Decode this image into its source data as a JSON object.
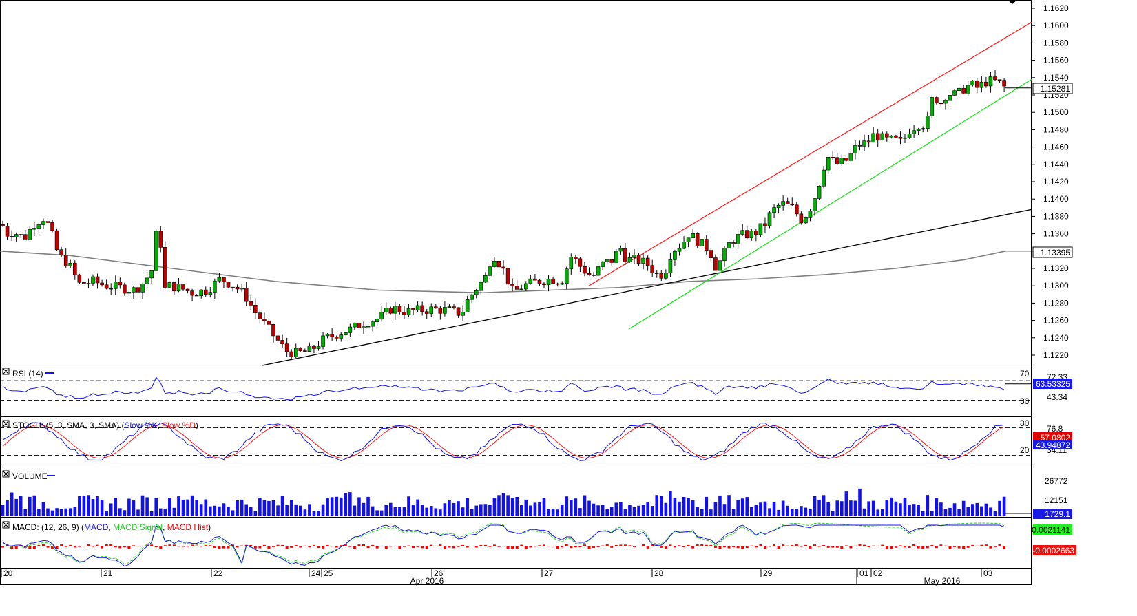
{
  "colors": {
    "bull": "#00b000",
    "bear": "#c00000",
    "channel_upper": "#ff2020",
    "channel_lower": "#20e020",
    "trendline": "#000000",
    "ma": "#808080",
    "rsi": "#1515e0",
    "stoch_k": "#1515e0",
    "stoch_d": "#ff1a1a",
    "volume": "#1010f0",
    "macd": "#1515e0",
    "macd_signal": "#20d020",
    "macd_hist": "#ff0000"
  },
  "price_axis": {
    "ticks": [
      "1.1620",
      "1.1600",
      "1.1580",
      "1.1560",
      "1.1540",
      "1.1520",
      "1.1500",
      "1.1480",
      "1.1460",
      "1.1440",
      "1.1420",
      "1.1400",
      "1.1380",
      "1.1360",
      "1.1340",
      "1.1320",
      "1.1300",
      "1.1280",
      "1.1260",
      "1.1240",
      "1.1220"
    ],
    "last_price_label": "1.15281",
    "ma_label": "1.13395"
  },
  "panels": {
    "rsi": {
      "title": "RSI (14)",
      "level_hi": "70",
      "level_lo": "30",
      "tick_top": "72.33",
      "tick_mid": "43.34",
      "value_label": "63.53325"
    },
    "stoch": {
      "title_prefix": "STOCH: (5, 3, SMA, 3, SMA) (",
      "k_name": "Slow %K",
      "sep": ", ",
      "d_name": "Slow %D",
      "title_suffix": ")",
      "level_hi": "80",
      "level_lo": "20",
      "tick_top": "76.8",
      "tick_low": "34.11",
      "k_value_label": "43.94872",
      "d_value_label": "57.0802"
    },
    "volume": {
      "title": "VOLUME",
      "tick_top": "26772",
      "tick_mid": "12151",
      "value_label": "1729.1"
    },
    "macd": {
      "title_prefix": "MACD: (12, 26, 9) (",
      "macd_name": "MACD",
      "sep": ", ",
      "signal_name": "MACD Signal",
      "hist_name": "MACD Hist",
      "title_suffix": ")",
      "signal_label": "0.0021141",
      "hist_label": "-0.0002663"
    }
  },
  "x_axis": {
    "day_labels": [
      "20",
      "21",
      "22",
      "24",
      "25",
      "26",
      "27",
      "28",
      "29",
      "01",
      "02",
      "03"
    ],
    "month_labels": [
      "Apr 2016",
      "May 2016"
    ]
  },
  "chart_data": {
    "type": "candlestick",
    "instrument_last_price": 1.15281,
    "interval_note": "intraday candles",
    "period_days": [
      "20",
      "21",
      "22",
      "24",
      "25",
      "26",
      "27",
      "28",
      "29",
      "01",
      "02",
      "03"
    ],
    "months": [
      "Apr 2016",
      "May 2016"
    ],
    "ylim": [
      1.1208,
      1.1625
    ],
    "price_path": [
      [
        0,
        1.1375
      ],
      [
        10,
        1.136
      ],
      [
        20,
        1.1362
      ],
      [
        35,
        1.1355
      ],
      [
        50,
        1.1372
      ],
      [
        63,
        1.1378
      ],
      [
        72,
        1.1368
      ],
      [
        85,
        1.1335
      ],
      [
        100,
        1.1325
      ],
      [
        115,
        1.1302
      ],
      [
        135,
        1.1305
      ],
      [
        155,
        1.13
      ],
      [
        175,
        1.1298
      ],
      [
        195,
        1.1295
      ],
      [
        210,
        1.1305
      ],
      [
        222,
        1.132
      ],
      [
        230,
        1.1385
      ],
      [
        238,
        1.1295
      ],
      [
        245,
        1.13
      ],
      [
        260,
        1.1298
      ],
      [
        280,
        1.1292
      ],
      [
        300,
        1.1295
      ],
      [
        320,
        1.1308
      ],
      [
        340,
        1.13
      ],
      [
        355,
        1.129
      ],
      [
        370,
        1.127
      ],
      [
        385,
        1.1255
      ],
      [
        400,
        1.124
      ],
      [
        415,
        1.1225
      ],
      [
        430,
        1.1222
      ],
      [
        450,
        1.1225
      ],
      [
        470,
        1.1238
      ],
      [
        490,
        1.1245
      ],
      [
        510,
        1.125
      ],
      [
        530,
        1.1258
      ],
      [
        550,
        1.1262
      ],
      [
        570,
        1.1275
      ],
      [
        590,
        1.127
      ],
      [
        610,
        1.1272
      ],
      [
        630,
        1.1273
      ],
      [
        650,
        1.1272
      ],
      [
        670,
        1.1268
      ],
      [
        680,
        1.1285
      ],
      [
        690,
        1.1295
      ],
      [
        705,
        1.131
      ],
      [
        715,
        1.1338
      ],
      [
        730,
        1.132
      ],
      [
        745,
        1.1292
      ],
      [
        760,
        1.13
      ],
      [
        780,
        1.1305
      ],
      [
        800,
        1.1308
      ],
      [
        815,
        1.1305
      ],
      [
        830,
        1.1335
      ],
      [
        845,
        1.132
      ],
      [
        860,
        1.131
      ],
      [
        875,
        1.1325
      ],
      [
        890,
        1.133
      ],
      [
        900,
        1.1345
      ],
      [
        910,
        1.133
      ],
      [
        925,
        1.133
      ],
      [
        940,
        1.1325
      ],
      [
        955,
        1.1312
      ],
      [
        965,
        1.1315
      ],
      [
        975,
        1.134
      ],
      [
        990,
        1.1348
      ],
      [
        1000,
        1.136
      ],
      [
        1015,
        1.135
      ],
      [
        1030,
        1.1342
      ],
      [
        1040,
        1.132
      ],
      [
        1050,
        1.1335
      ],
      [
        1060,
        1.135
      ],
      [
        1075,
        1.1358
      ],
      [
        1095,
        1.136
      ],
      [
        1110,
        1.137
      ],
      [
        1120,
        1.1385
      ],
      [
        1135,
        1.1395
      ],
      [
        1150,
        1.139
      ],
      [
        1165,
        1.1375
      ],
      [
        1180,
        1.1395
      ],
      [
        1190,
        1.142
      ],
      [
        1200,
        1.145
      ],
      [
        1215,
        1.144
      ],
      [
        1230,
        1.1445
      ],
      [
        1245,
        1.1462
      ],
      [
        1260,
        1.1465
      ],
      [
        1270,
        1.1475
      ],
      [
        1285,
        1.1468
      ],
      [
        1300,
        1.1468
      ],
      [
        1310,
        1.1465
      ],
      [
        1320,
        1.148
      ],
      [
        1335,
        1.1487
      ],
      [
        1345,
        1.1485
      ],
      [
        1355,
        1.152
      ],
      [
        1365,
        1.151
      ],
      [
        1375,
        1.1522
      ],
      [
        1390,
        1.152
      ],
      [
        1400,
        1.1528
      ],
      [
        1410,
        1.1532
      ],
      [
        1420,
        1.1528
      ],
      [
        1430,
        1.1535
      ],
      [
        1440,
        1.1536
      ],
      [
        1450,
        1.1535
      ],
      [
        1460,
        1.1528
      ]
    ],
    "channel_upper": {
      "from": [
        855,
        1.13
      ],
      "to": [
        1498,
        1.1604
      ]
    },
    "channel_lower": {
      "from": [
        913,
        1.125
      ],
      "to": [
        1498,
        1.1538
      ]
    },
    "trendline": {
      "from": [
        380,
        1.1208
      ],
      "to": [
        1498,
        1.1388
      ]
    },
    "moving_average": [
      [
        0,
        1.134
      ],
      [
        100,
        1.1335
      ],
      [
        250,
        1.132
      ],
      [
        400,
        1.1305
      ],
      [
        550,
        1.1295
      ],
      [
        700,
        1.1292
      ],
      [
        800,
        1.1295
      ],
      [
        900,
        1.1298
      ],
      [
        1000,
        1.1305
      ],
      [
        1100,
        1.1308
      ],
      [
        1200,
        1.1313
      ],
      [
        1300,
        1.132
      ],
      [
        1400,
        1.133
      ],
      [
        1460,
        1.134
      ]
    ],
    "rsi_levels": [
      70,
      30
    ],
    "stoch_levels": [
      80,
      20
    ],
    "last_values": {
      "rsi": 63.53325,
      "stoch_k": 43.94872,
      "stoch_d": 57.0802,
      "volume": 1729.1,
      "macd_signal": 0.0021141,
      "macd_hist": -0.0002663,
      "ma": 1.13395
    }
  }
}
